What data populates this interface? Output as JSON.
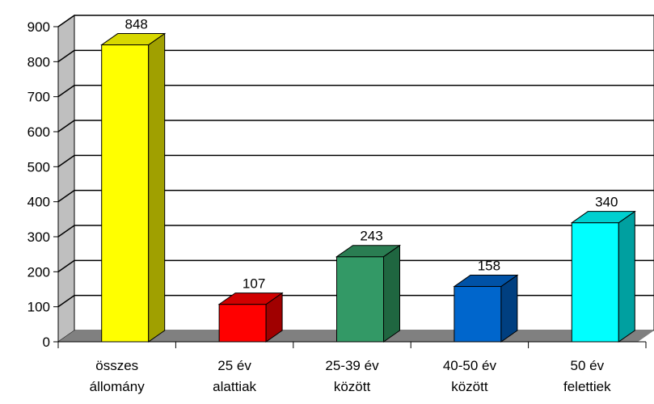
{
  "chart_data": {
    "type": "bar",
    "categories": [
      [
        "összes",
        "állomány"
      ],
      [
        "25 év",
        "alattiak"
      ],
      [
        "25-39 év",
        "között"
      ],
      [
        "40-50 év",
        "között"
      ],
      [
        "50 év",
        "felettiek"
      ]
    ],
    "values": [
      848,
      107,
      243,
      158,
      340
    ],
    "data_labels": [
      "848",
      "107",
      "243",
      "158",
      "340"
    ],
    "ylim": [
      0,
      900
    ],
    "yticks": [
      0,
      100,
      200,
      300,
      400,
      500,
      600,
      700,
      800,
      900
    ],
    "grid": true,
    "three_d": true,
    "colors": {
      "bars": [
        {
          "front": "#ffff00",
          "side": "#a0a000",
          "top": "#d8d800"
        },
        {
          "front": "#ff0000",
          "side": "#a00000",
          "top": "#d00000"
        },
        {
          "front": "#339966",
          "side": "#1f6640",
          "top": "#2a7d52"
        },
        {
          "front": "#0066cc",
          "side": "#003f80",
          "top": "#0052a6"
        },
        {
          "front": "#00ffff",
          "side": "#00a0a0",
          "top": "#00d0d0"
        }
      ],
      "back_wall": "#ffffff",
      "side_wall": "#bfbfbf",
      "floor": "#808080",
      "grid": "#000000"
    }
  }
}
